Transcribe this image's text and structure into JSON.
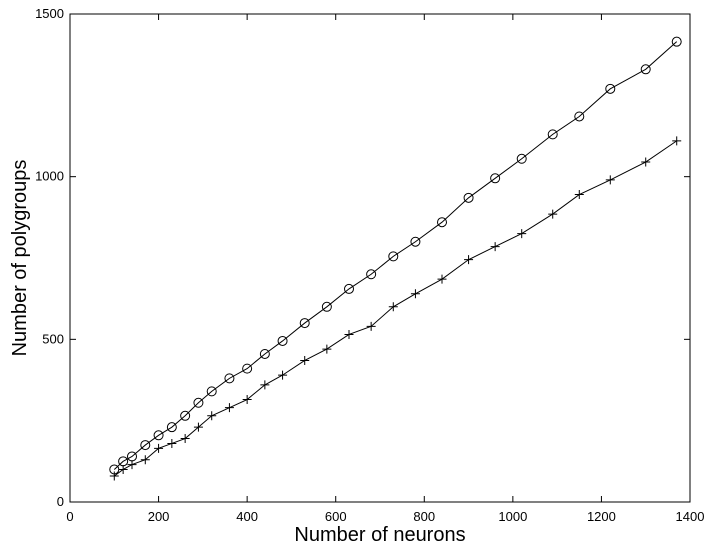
{
  "chart_data": {
    "type": "line",
    "x_label": "Number of neurons",
    "y_label": "Number of polygroups",
    "x": [
      100,
      120,
      140,
      170,
      200,
      230,
      260,
      290,
      320,
      360,
      400,
      440,
      480,
      530,
      580,
      630,
      680,
      730,
      780,
      840,
      900,
      960,
      1020,
      1090,
      1150,
      1220,
      1300,
      1370
    ],
    "series": [
      {
        "color": "#000000",
        "marker": "o",
        "values": [
          100,
          125,
          140,
          175,
          205,
          230,
          265,
          305,
          340,
          380,
          410,
          455,
          495,
          550,
          600,
          655,
          700,
          755,
          800,
          860,
          935,
          995,
          1055,
          1130,
          1185,
          1270,
          1330,
          1415
        ]
      },
      {
        "color": "#000000",
        "marker": "+",
        "values": [
          80,
          100,
          115,
          130,
          165,
          180,
          195,
          230,
          265,
          290,
          315,
          360,
          390,
          435,
          470,
          515,
          540,
          600,
          640,
          685,
          745,
          785,
          825,
          885,
          945,
          990,
          1045,
          1110
        ]
      }
    ],
    "xlim": [
      0,
      1400
    ],
    "xticks": [
      0,
      200,
      400,
      600,
      800,
      1000,
      1200,
      1400
    ],
    "ylim": [
      0,
      1500
    ],
    "yticks": [
      0,
      500,
      1000,
      1500
    ],
    "grid": false
  }
}
